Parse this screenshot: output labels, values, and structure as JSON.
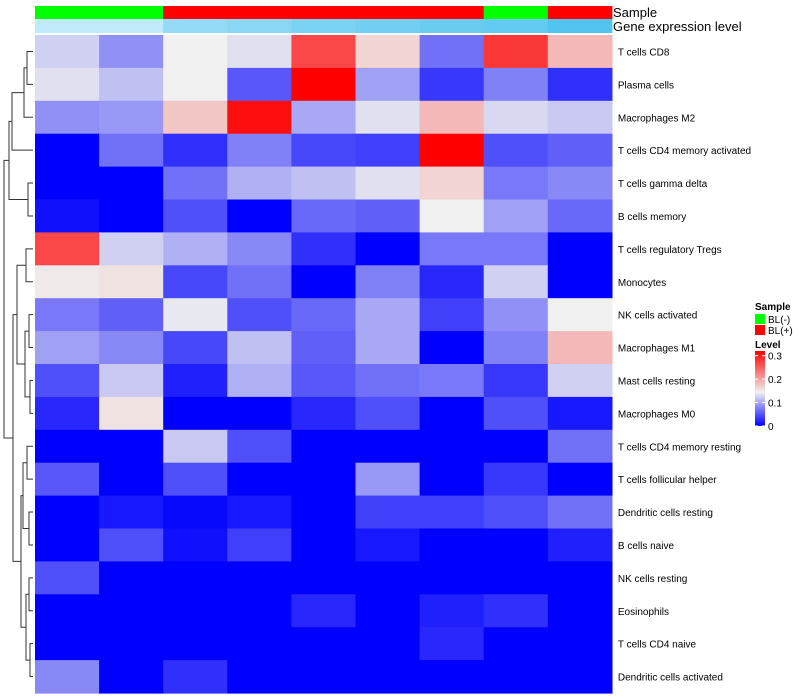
{
  "chart_data": {
    "type": "heatmap",
    "annotation_rows": [
      {
        "name": "Sample",
        "groups": [
          "BL(-)",
          "BL(-)",
          "BL(+)",
          "BL(+)",
          "BL(+)",
          "BL(+)",
          "BL(+)",
          "BL(-)",
          "BL(+)"
        ]
      },
      {
        "name": "Gene expression level",
        "values": [
          0.3,
          0.3,
          0.6,
          0.65,
          0.75,
          0.8,
          0.85,
          0.9,
          1.0
        ]
      }
    ],
    "rows": [
      "T cells CD8",
      "Plasma cells",
      "Macrophages M2",
      "T cells CD4 memory activated",
      "T cells gamma delta",
      "B cells memory",
      "T cells regulatory  Tregs",
      "Monocytes",
      "NK cells activated",
      "Macrophages M1",
      "Mast cells resting",
      "Macrophages M0",
      "T cells CD4 memory resting",
      "T cells follicular helper",
      "Dendritic cells resting",
      "B cells naive",
      "NK cells resting",
      "Eosinophils",
      "T cells CD4 naive",
      "Dendritic cells activated"
    ],
    "values": [
      [
        0.13,
        0.09,
        0.15,
        0.14,
        0.27,
        0.17,
        0.07,
        0.28,
        0.19
      ],
      [
        0.14,
        0.12,
        0.15,
        0.055,
        0.32,
        0.1,
        0.035,
        0.08,
        0.03
      ],
      [
        0.09,
        0.095,
        0.18,
        0.31,
        0.105,
        0.14,
        0.19,
        0.135,
        0.125
      ],
      [
        0.0,
        0.07,
        0.03,
        0.08,
        0.045,
        0.04,
        0.32,
        0.05,
        0.06
      ],
      [
        0.0,
        0.0,
        0.07,
        0.11,
        0.12,
        0.14,
        0.17,
        0.075,
        0.085
      ],
      [
        0.01,
        0.0,
        0.05,
        0.0,
        0.065,
        0.06,
        0.15,
        0.1,
        0.065
      ],
      [
        0.27,
        0.13,
        0.11,
        0.085,
        0.03,
        0.0,
        0.075,
        0.075,
        0.0
      ],
      [
        0.155,
        0.16,
        0.045,
        0.07,
        0.0,
        0.08,
        0.025,
        0.13,
        0.0
      ],
      [
        0.075,
        0.06,
        0.145,
        0.05,
        0.065,
        0.105,
        0.04,
        0.09,
        0.15
      ],
      [
        0.1,
        0.085,
        0.045,
        0.12,
        0.06,
        0.105,
        0.0,
        0.08,
        0.19
      ],
      [
        0.05,
        0.125,
        0.02,
        0.11,
        0.055,
        0.07,
        0.075,
        0.035,
        0.13
      ],
      [
        0.025,
        0.16,
        0.0,
        0.0,
        0.025,
        0.05,
        0.0,
        0.05,
        0.015
      ],
      [
        0.0,
        0.0,
        0.125,
        0.05,
        0.0,
        0.0,
        0.0,
        0.0,
        0.07
      ],
      [
        0.055,
        0.0,
        0.05,
        0.0,
        0.0,
        0.095,
        0.0,
        0.035,
        0.0
      ],
      [
        0.0,
        0.015,
        0.005,
        0.015,
        0.0,
        0.04,
        0.04,
        0.05,
        0.07
      ],
      [
        0.0,
        0.05,
        0.01,
        0.04,
        0.0,
        0.015,
        0.0,
        0.0,
        0.02
      ],
      [
        0.05,
        0.0,
        0.0,
        0.0,
        0.0,
        0.0,
        0.0,
        0.0,
        0.0
      ],
      [
        0.0,
        0.0,
        0.0,
        0.0,
        0.025,
        0.0,
        0.02,
        0.03,
        0.0
      ],
      [
        0.0,
        0.0,
        0.0,
        0.0,
        0.0,
        0.0,
        0.025,
        0.0,
        0.0
      ],
      [
        0.085,
        0.0,
        0.03,
        0.0,
        0.0,
        0.0,
        0.0,
        0.0,
        0.0
      ]
    ],
    "color_scale": {
      "low": "#0000ff",
      "mid": "#f0f0f0",
      "high": "#ff0000",
      "low_value": 0.0,
      "mid_value": 0.15,
      "high_value": 0.32
    },
    "annotation_colors": {
      "BL(-)": "#00ff00",
      "BL(+)": "#ff0000",
      "level_low": "#f0fbff",
      "level_high": "#53c4f0"
    },
    "legend": {
      "sample_title": "Sample",
      "sample_items": [
        {
          "label": "BL(-)",
          "color": "#00ff00"
        },
        {
          "label": "BL(+)",
          "color": "#ff0000"
        }
      ],
      "level_title": "Level",
      "level_ticks": [
        {
          "label": "0.3",
          "value": 0.3
        },
        {
          "label": "0.2",
          "value": 0.2
        },
        {
          "label": "0.1",
          "value": 0.1
        },
        {
          "label": "0",
          "value": 0.0
        }
      ],
      "placement": "right"
    },
    "dendrogram": "left rows only"
  }
}
